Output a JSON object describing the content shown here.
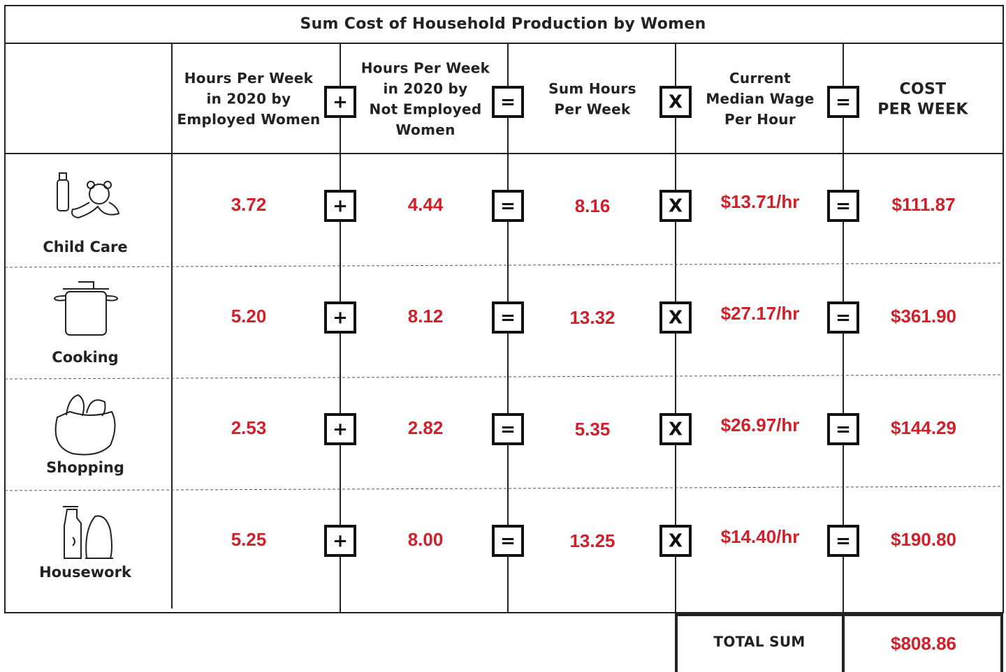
{
  "title": "Sum Cost of Household Production by Women",
  "headers": [
    [
      "Hours Per Week",
      "in 2020 by",
      "Employed Women"
    ],
    [
      "Hours Per Week",
      "in 2020 by",
      "Not Employed",
      "Women"
    ],
    [
      "Sum Hours",
      "Per Week"
    ],
    [
      "Current",
      "Median Wage",
      "Per Hour"
    ],
    [
      "COST",
      "PER WEEK"
    ]
  ],
  "operators": [
    "+",
    "=",
    "X",
    "="
  ],
  "rows": [
    {
      "label": "Child Care",
      "cells": [
        "3.72",
        "4.44",
        "8.16",
        "$13.71/hr",
        "$111.87"
      ]
    },
    {
      "label": "Cooking",
      "cells": [
        "5.20",
        "8.12",
        "13.32",
        "$27.17/hr",
        "$361.90"
      ]
    },
    {
      "label": "Shopping",
      "cells": [
        "2.53",
        "2.82",
        "5.35",
        "$26.97/hr",
        "$144.29"
      ]
    },
    {
      "label": "Housework",
      "cells": [
        "5.25",
        "8.00",
        "13.25",
        "$14.40/hr",
        "$190.80"
      ]
    }
  ],
  "total": {
    "label": "TOTAL SUM",
    "value": "$808.86"
  }
}
